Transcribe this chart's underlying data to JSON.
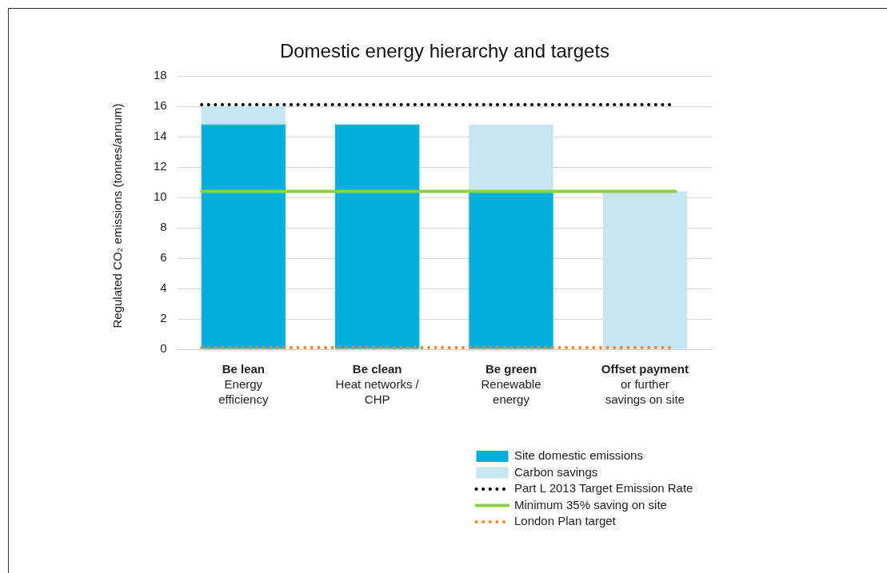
{
  "chart_data": {
    "type": "bar",
    "title": "Domestic energy hierarchy and targets",
    "ylabel": "Regulated CO₂ emissions (tonnes/annum)",
    "categories": [
      "Be lean\nEnergy\nefficiency",
      "Be clean\nHeat networks /\nCHP",
      "Be green\nRenewable\nenergy",
      "Offset payment\nor further\nsavings on site"
    ],
    "stacked": true,
    "series": [
      {
        "name": "Site domestic emissions",
        "color": "#00afdb",
        "values": [
          14.8,
          14.8,
          10.4,
          0
        ]
      },
      {
        "name": "Carbon savings",
        "color": "#c7e6f1",
        "values": [
          1.2,
          0,
          4.4,
          10.4
        ]
      }
    ],
    "ref_lines": [
      {
        "axis": "y",
        "value": 16.1,
        "label": "Part L 2013 Target Emission Rate",
        "color": "#000000",
        "line_style": "dotted"
      },
      {
        "axis": "y",
        "value": 10.4,
        "label": "Minimum 35% saving on site",
        "color": "#8cd14a",
        "line_style": "solid"
      },
      {
        "axis": "y",
        "value": 0.1,
        "label": "London Plan target",
        "color": "#f5882f",
        "line_style": "dotted"
      }
    ],
    "ylim": [
      0,
      18
    ],
    "yticks": [
      0,
      2,
      4,
      6,
      8,
      10,
      12,
      14,
      16,
      18
    ],
    "grid": "y",
    "legend": "bottom right"
  }
}
